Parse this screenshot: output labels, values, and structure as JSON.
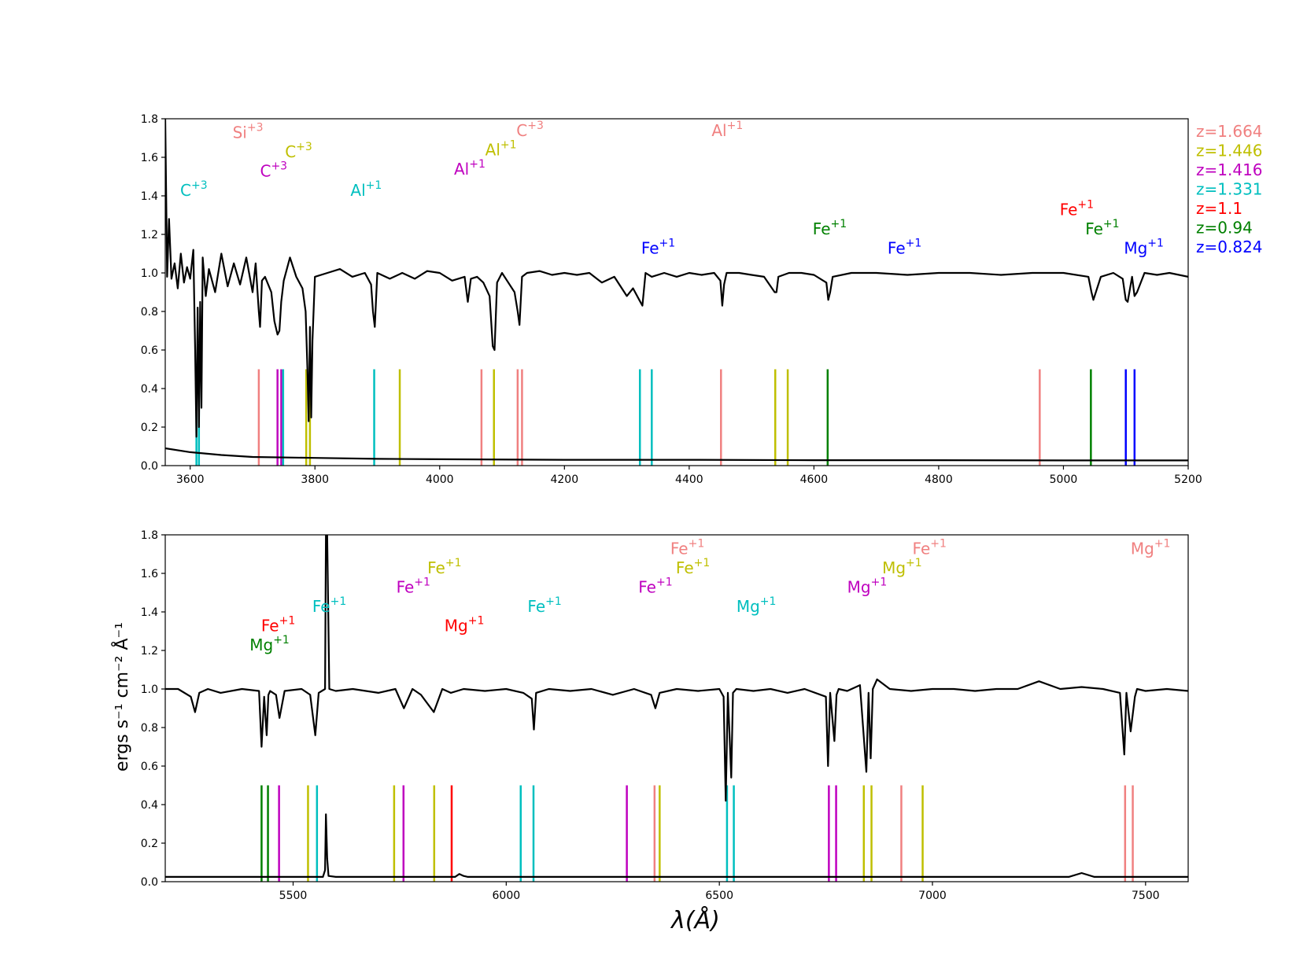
{
  "colors": {
    "1.664": "#f08080",
    "1.446": "#bfbf00",
    "1.416": "#bf00bf",
    "1.331": "#00bfbf",
    "1.1": "#ff0000",
    "0.94": "#008000",
    "0.824": "#0000ff"
  },
  "chart_data": [
    {
      "type": "line",
      "title": "",
      "xlabel": "",
      "ylabel": "",
      "xlim": [
        3560,
        5200
      ],
      "ylim": [
        0,
        1.8
      ],
      "xticks": [
        "3600",
        "3800",
        "4000",
        "4200",
        "4400",
        "4600",
        "4800",
        "5000",
        "5200"
      ],
      "yticks": [
        "0.0",
        "0.2",
        "0.4",
        "0.6",
        "0.8",
        "1.0",
        "1.2",
        "1.4",
        "1.6",
        "1.8"
      ],
      "grid": false,
      "series": [
        {
          "role": "flux",
          "x": [
            3560,
            3563,
            3566,
            3570,
            3575,
            3580,
            3585,
            3590,
            3595,
            3600,
            3605,
            3608,
            3610,
            3612,
            3614,
            3616,
            3618,
            3620,
            3625,
            3630,
            3640,
            3650,
            3660,
            3670,
            3680,
            3690,
            3700,
            3705,
            3710,
            3712,
            3715,
            3720,
            3730,
            3735,
            3740,
            3743,
            3746,
            3750,
            3760,
            3770,
            3780,
            3785,
            3788,
            3790,
            3792,
            3794,
            3796,
            3800,
            3820,
            3840,
            3860,
            3880,
            3890,
            3893,
            3896,
            3900,
            3920,
            3940,
            3960,
            3980,
            4000,
            4020,
            4040,
            4045,
            4050,
            4060,
            4070,
            4080,
            4085,
            4088,
            4092,
            4100,
            4110,
            4120,
            4125,
            4128,
            4132,
            4140,
            4160,
            4180,
            4200,
            4220,
            4240,
            4260,
            4280,
            4300,
            4310,
            4320,
            4325,
            4330,
            4340,
            4360,
            4380,
            4400,
            4420,
            4440,
            4450,
            4453,
            4456,
            4460,
            4480,
            4500,
            4520,
            4537,
            4540,
            4543,
            4560,
            4580,
            4600,
            4620,
            4623,
            4626,
            4630,
            4660,
            4700,
            4750,
            4800,
            4850,
            4900,
            4950,
            5000,
            5040,
            5045,
            5048,
            5060,
            5080,
            5095,
            5100,
            5103,
            5110,
            5114,
            5118,
            5130,
            5150,
            5170,
            5200
          ],
          "y": [
            1.8,
            0.98,
            1.28,
            0.97,
            1.05,
            0.92,
            1.1,
            0.95,
            1.03,
            0.97,
            1.12,
            0.6,
            0.15,
            0.82,
            0.2,
            0.85,
            0.3,
            1.08,
            0.88,
            1.02,
            0.9,
            1.1,
            0.93,
            1.05,
            0.94,
            1.08,
            0.9,
            1.05,
            0.8,
            0.72,
            0.96,
            0.98,
            0.9,
            0.75,
            0.68,
            0.7,
            0.85,
            0.96,
            1.08,
            0.98,
            0.92,
            0.8,
            0.5,
            0.23,
            0.72,
            0.25,
            0.65,
            0.98,
            1.0,
            1.02,
            0.98,
            1.0,
            0.94,
            0.8,
            0.72,
            1.0,
            0.97,
            1.0,
            0.97,
            1.01,
            1.0,
            0.96,
            0.98,
            0.85,
            0.97,
            0.98,
            0.95,
            0.88,
            0.62,
            0.6,
            0.95,
            1.0,
            0.95,
            0.9,
            0.8,
            0.73,
            0.98,
            1.0,
            1.01,
            0.99,
            1.0,
            0.99,
            1.0,
            0.95,
            0.98,
            0.88,
            0.92,
            0.86,
            0.83,
            1.0,
            0.98,
            1.0,
            0.98,
            1.0,
            0.99,
            1.0,
            0.96,
            0.83,
            0.94,
            1.0,
            1.0,
            0.99,
            0.98,
            0.9,
            0.9,
            0.98,
            1.0,
            1.0,
            0.99,
            0.95,
            0.86,
            0.9,
            0.98,
            1.0,
            1.0,
            0.99,
            1.0,
            1.0,
            0.99,
            1.0,
            1.0,
            0.98,
            0.9,
            0.86,
            0.98,
            1.0,
            0.97,
            0.86,
            0.85,
            0.98,
            0.88,
            0.9,
            1.0,
            0.99,
            1.0,
            0.98
          ]
        },
        {
          "role": "error",
          "x": [
            3560,
            3600,
            3650,
            3700,
            3800,
            3900,
            4000,
            4200,
            4400,
            4600,
            4800,
            5000,
            5200
          ],
          "y": [
            0.09,
            0.07,
            0.055,
            0.045,
            0.04,
            0.035,
            0.033,
            0.03,
            0.03,
            0.028,
            0.028,
            0.027,
            0.027
          ]
        }
      ],
      "markers": [
        {
          "z": "1.331",
          "x": 3610
        },
        {
          "z": "1.331",
          "x": 3614
        },
        {
          "z": "1.664",
          "x": 3710
        },
        {
          "z": "1.416",
          "x": 3740
        },
        {
          "z": "1.416",
          "x": 3746
        },
        {
          "z": "1.331",
          "x": 3749
        },
        {
          "z": "1.446",
          "x": 3786
        },
        {
          "z": "1.446",
          "x": 3792
        },
        {
          "z": "1.331",
          "x": 3895
        },
        {
          "z": "1.446",
          "x": 3936
        },
        {
          "z": "1.664",
          "x": 4067
        },
        {
          "z": "1.446",
          "x": 4087
        },
        {
          "z": "1.664",
          "x": 4125
        },
        {
          "z": "1.664",
          "x": 4132
        },
        {
          "z": "1.331",
          "x": 4321
        },
        {
          "z": "1.331",
          "x": 4340
        },
        {
          "z": "1.664",
          "x": 4451
        },
        {
          "z": "1.446",
          "x": 4538
        },
        {
          "z": "1.446",
          "x": 4558
        },
        {
          "z": "0.94",
          "x": 4622
        },
        {
          "z": "1.664",
          "x": 4962
        },
        {
          "z": "0.94",
          "x": 5044
        },
        {
          "z": "0.824",
          "x": 5100
        },
        {
          "z": "0.824",
          "x": 5114
        }
      ],
      "annotations": [
        {
          "ion": "Si",
          "charge": "+3",
          "z": "1.664",
          "x": 3668,
          "y": 1.7
        },
        {
          "ion": "C",
          "charge": "+3",
          "z": "1.446",
          "x": 3752,
          "y": 1.6
        },
        {
          "ion": "C",
          "charge": "+3",
          "z": "1.416",
          "x": 3712,
          "y": 1.5
        },
        {
          "ion": "C",
          "charge": "+3",
          "z": "1.331",
          "x": 3584,
          "y": 1.4
        },
        {
          "ion": "Al",
          "charge": "+1",
          "z": "1.331",
          "x": 3857,
          "y": 1.4
        },
        {
          "ion": "Al",
          "charge": "+1",
          "z": "1.416",
          "x": 4023,
          "y": 1.51
        },
        {
          "ion": "Al",
          "charge": "+1",
          "z": "1.446",
          "x": 4073,
          "y": 1.61
        },
        {
          "ion": "C",
          "charge": "+3",
          "z": "1.664",
          "x": 4123,
          "y": 1.71
        },
        {
          "ion": "Al",
          "charge": "+1",
          "z": "1.664",
          "x": 4436,
          "y": 1.71
        },
        {
          "ion": "Fe",
          "charge": "+1",
          "z": "0.824",
          "x": 4323,
          "y": 1.1
        },
        {
          "ion": "Fe",
          "charge": "+1",
          "z": "0.94",
          "x": 4598,
          "y": 1.2
        },
        {
          "ion": "Fe",
          "charge": "+1",
          "z": "0.824",
          "x": 4718,
          "y": 1.1
        },
        {
          "ion": "Fe",
          "charge": "+1",
          "z": "1.1",
          "x": 4994,
          "y": 1.3
        },
        {
          "ion": "Fe",
          "charge": "+1",
          "z": "0.94",
          "x": 5035,
          "y": 1.2
        },
        {
          "ion": "Mg",
          "charge": "+1",
          "z": "0.824",
          "x": 5097,
          "y": 1.1
        }
      ]
    },
    {
      "type": "line",
      "title": "",
      "xlabel": "λ(Å)",
      "ylabel": "ergs s⁻¹ cm⁻² Å⁻¹",
      "xlim": [
        5200,
        7600
      ],
      "ylim": [
        0,
        1.8
      ],
      "xticks": [
        "5500",
        "6000",
        "6500",
        "7000",
        "7500"
      ],
      "yticks": [
        "0.0",
        "0.2",
        "0.4",
        "0.6",
        "0.8",
        "1.0",
        "1.2",
        "1.4",
        "1.6",
        "1.8"
      ],
      "grid": false,
      "series": [
        {
          "role": "flux",
          "x": [
            5200,
            5230,
            5260,
            5270,
            5280,
            5300,
            5330,
            5380,
            5420,
            5426,
            5432,
            5438,
            5442,
            5446,
            5460,
            5468,
            5480,
            5520,
            5540,
            5552,
            5560,
            5575,
            5577,
            5580,
            5585,
            5600,
            5640,
            5700,
            5740,
            5760,
            5780,
            5800,
            5830,
            5850,
            5870,
            5900,
            5950,
            6000,
            6040,
            6060,
            6065,
            6070,
            6100,
            6150,
            6200,
            6250,
            6300,
            6340,
            6350,
            6360,
            6400,
            6450,
            6500,
            6510,
            6515,
            6520,
            6528,
            6532,
            6540,
            6580,
            6620,
            6660,
            6700,
            6750,
            6755,
            6760,
            6770,
            6775,
            6780,
            6800,
            6830,
            6845,
            6850,
            6855,
            6860,
            6870,
            6900,
            6950,
            7000,
            7050,
            7100,
            7150,
            7200,
            7250,
            7300,
            7350,
            7400,
            7440,
            7450,
            7455,
            7465,
            7475,
            7480,
            7500,
            7550,
            7600
          ],
          "y": [
            1.0,
            1.0,
            0.96,
            0.88,
            0.98,
            1.0,
            0.98,
            1.0,
            0.99,
            0.7,
            0.96,
            0.76,
            0.97,
            0.99,
            0.97,
            0.85,
            0.99,
            1.0,
            0.97,
            0.76,
            0.98,
            1.0,
            1.8,
            1.8,
            1.0,
            0.99,
            1.0,
            0.98,
            1.0,
            0.9,
            1.0,
            0.97,
            0.88,
            1.0,
            0.98,
            1.0,
            0.99,
            1.0,
            0.98,
            0.95,
            0.79,
            0.98,
            1.0,
            0.99,
            1.0,
            0.97,
            1.0,
            0.97,
            0.9,
            0.98,
            1.0,
            0.99,
            1.0,
            0.96,
            0.42,
            0.98,
            0.54,
            0.98,
            1.0,
            0.99,
            1.0,
            0.98,
            1.0,
            0.96,
            0.6,
            0.98,
            0.73,
            0.97,
            1.0,
            0.99,
            1.02,
            0.57,
            0.98,
            0.64,
            1.0,
            1.05,
            1.0,
            0.99,
            1.0,
            1.0,
            0.99,
            1.0,
            1.0,
            1.04,
            1.0,
            1.01,
            1.0,
            0.98,
            0.66,
            0.98,
            0.78,
            0.96,
            1.0,
            0.99,
            1.0,
            0.99
          ]
        },
        {
          "role": "error",
          "x": [
            5200,
            5400,
            5570,
            5575,
            5577,
            5580,
            5583,
            5600,
            5880,
            5890,
            5900,
            5910,
            6000,
            6500,
            7000,
            7320,
            7350,
            7380,
            7600
          ],
          "y": [
            0.025,
            0.025,
            0.025,
            0.06,
            0.35,
            0.12,
            0.03,
            0.025,
            0.025,
            0.04,
            0.03,
            0.025,
            0.025,
            0.025,
            0.025,
            0.025,
            0.045,
            0.025,
            0.025
          ]
        }
      ],
      "markers": [
        {
          "z": "0.94",
          "x": 5426
        },
        {
          "z": "0.94",
          "x": 5441
        },
        {
          "z": "1.416",
          "x": 5467
        },
        {
          "z": "1.446",
          "x": 5535
        },
        {
          "z": "1.331",
          "x": 5556
        },
        {
          "z": "1.446",
          "x": 5737
        },
        {
          "z": "1.416",
          "x": 5759
        },
        {
          "z": "1.446",
          "x": 5831
        },
        {
          "z": "1.1",
          "x": 5872
        },
        {
          "z": "1.331",
          "x": 6034
        },
        {
          "z": "1.331",
          "x": 6064
        },
        {
          "z": "1.416",
          "x": 6283
        },
        {
          "z": "1.664",
          "x": 6348
        },
        {
          "z": "1.446",
          "x": 6360
        },
        {
          "z": "1.331",
          "x": 6518
        },
        {
          "z": "1.331",
          "x": 6534
        },
        {
          "z": "1.416",
          "x": 6757
        },
        {
          "z": "1.416",
          "x": 6774
        },
        {
          "z": "1.446",
          "x": 6839
        },
        {
          "z": "1.446",
          "x": 6857
        },
        {
          "z": "1.664",
          "x": 6927
        },
        {
          "z": "1.446",
          "x": 6977
        },
        {
          "z": "1.664",
          "x": 7452
        },
        {
          "z": "1.664",
          "x": 7470
        }
      ],
      "annotations": [
        {
          "ion": "Fe",
          "charge": "+1",
          "z": "1.1",
          "x": 5425,
          "y": 1.3
        },
        {
          "ion": "Mg",
          "charge": "+1",
          "z": "0.94",
          "x": 5398,
          "y": 1.2
        },
        {
          "ion": "Fe",
          "charge": "+1",
          "z": "1.331",
          "x": 5545,
          "y": 1.4
        },
        {
          "ion": "Fe",
          "charge": "+1",
          "z": "1.416",
          "x": 5742,
          "y": 1.5
        },
        {
          "ion": "Fe",
          "charge": "+1",
          "z": "1.446",
          "x": 5815,
          "y": 1.6
        },
        {
          "ion": "Mg",
          "charge": "+1",
          "z": "1.1",
          "x": 5855,
          "y": 1.3
        },
        {
          "ion": "Fe",
          "charge": "+1",
          "z": "1.331",
          "x": 6050,
          "y": 1.4
        },
        {
          "ion": "Fe",
          "charge": "+1",
          "z": "1.416",
          "x": 6310,
          "y": 1.5
        },
        {
          "ion": "Fe",
          "charge": "+1",
          "z": "1.446",
          "x": 6398,
          "y": 1.6
        },
        {
          "ion": "Fe",
          "charge": "+1",
          "z": "1.664",
          "x": 6385,
          "y": 1.7
        },
        {
          "ion": "Mg",
          "charge": "+1",
          "z": "1.331",
          "x": 6540,
          "y": 1.4
        },
        {
          "ion": "Mg",
          "charge": "+1",
          "z": "1.416",
          "x": 6800,
          "y": 1.5
        },
        {
          "ion": "Mg",
          "charge": "+1",
          "z": "1.446",
          "x": 6882,
          "y": 1.6
        },
        {
          "ion": "Fe",
          "charge": "+1",
          "z": "1.664",
          "x": 6953,
          "y": 1.7
        },
        {
          "ion": "Mg",
          "charge": "+1",
          "z": "1.664",
          "x": 7465,
          "y": 1.7
        }
      ]
    }
  ],
  "legend": {
    "placement": "right",
    "entries": [
      {
        "label": "z=1.664",
        "z": "1.664"
      },
      {
        "label": "z=1.446",
        "z": "1.446"
      },
      {
        "label": "z=1.416",
        "z": "1.416"
      },
      {
        "label": "z=1.331",
        "z": "1.331"
      },
      {
        "label": "z=1.1",
        "z": "1.1"
      },
      {
        "label": "z=0.94",
        "z": "0.94"
      },
      {
        "label": "z=0.824",
        "z": "0.824"
      }
    ]
  }
}
